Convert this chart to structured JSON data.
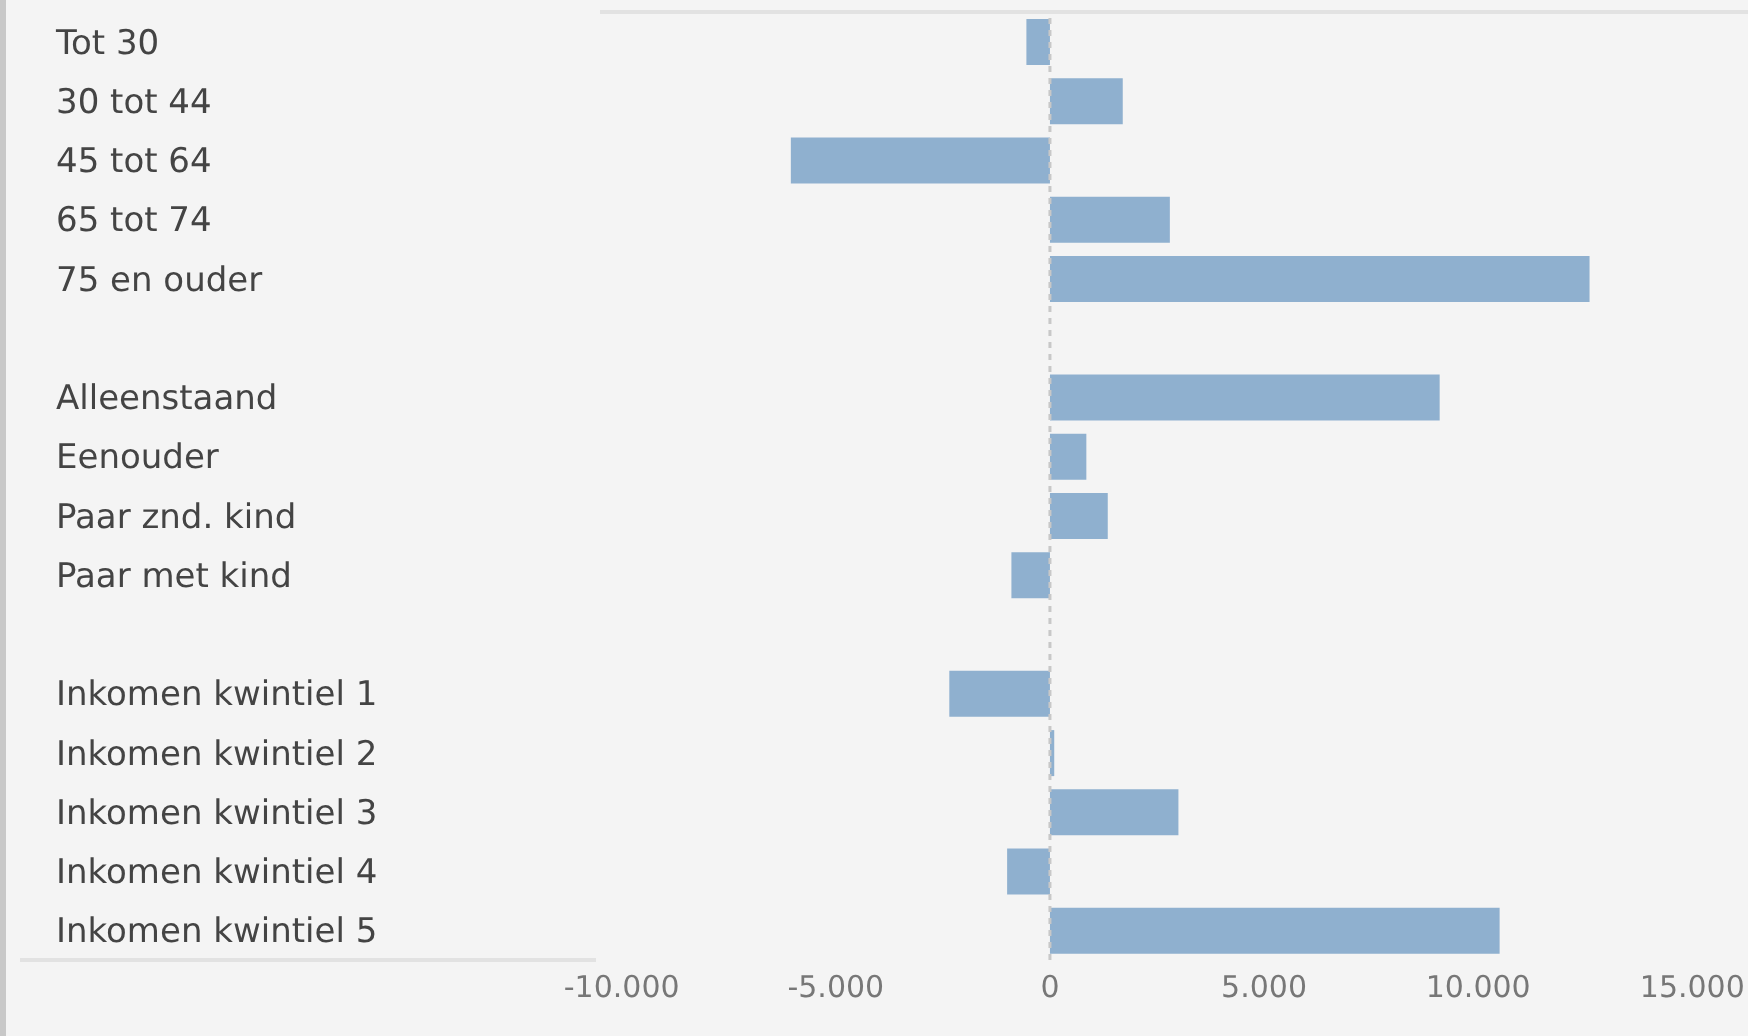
{
  "chart_data": {
    "type": "bar",
    "orientation": "horizontal",
    "categories": [
      "Tot 30",
      "30 tot 44",
      "45 tot 64",
      "65 tot 74",
      "75 en ouder",
      null,
      "Alleenstaand",
      "Eenouder",
      "Paar znd. kind",
      "Paar met kind",
      null,
      "Inkomen kwintiel 1",
      "Inkomen kwintiel 2",
      "Inkomen kwintiel 3",
      "Inkomen kwintiel 4",
      "Inkomen kwintiel 5"
    ],
    "values": [
      -550,
      1700,
      -6050,
      2800,
      12600,
      null,
      9100,
      850,
      1350,
      -900,
      null,
      -2350,
      100,
      3000,
      -1000,
      10500
    ],
    "color": "#8fb0cf",
    "xlim": [
      -10600,
      16300
    ],
    "xticks": [
      {
        "value": -10000,
        "label": "-10.000"
      },
      {
        "value": -5000,
        "label": "-5.000"
      },
      0,
      {
        "value": 5000,
        "label": "5.000"
      },
      {
        "value": 10000,
        "label": "10.000"
      },
      {
        "value": 15000,
        "label": "15.000"
      }
    ],
    "ref_lines": [
      {
        "axis": "x",
        "value": 0,
        "color": "#c8c8c8",
        "line_style": "dashed"
      }
    ],
    "grid": false
  }
}
